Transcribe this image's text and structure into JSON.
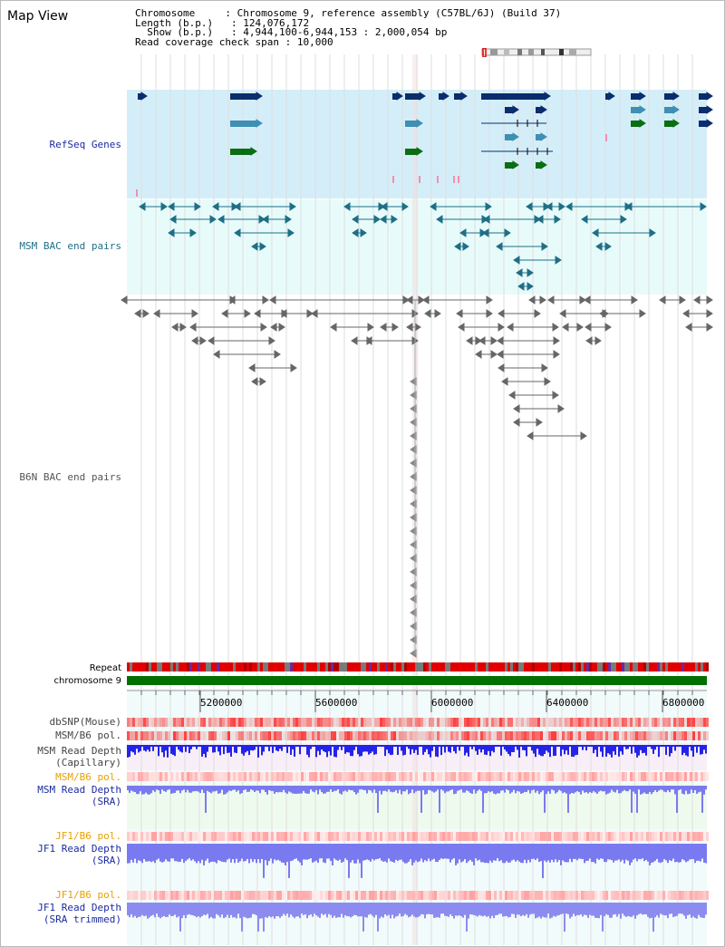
{
  "header": {
    "title": "Map View",
    "chromosome_key": "Chromosome",
    "chromosome_val": "Chromosome 9, reference assembly (C57BL/6J) (Build 37)",
    "length_key": "Length (b.p.)",
    "length_val": "124,076,172",
    "show_key": "Show (b.p.)",
    "show_val": "4,944,100-6,944,153 : 2,000,054 bp",
    "span_key": "Read coverage check span",
    "span_val": "10,000"
  },
  "tracks": {
    "refseq": "RefSeq Genes",
    "msm_bac": "MSM BAC end pairs",
    "b6n_bac": "B6N BAC end pairs",
    "repeat": "Repeat",
    "chromosome": "chromosome 9",
    "dbsnp": "dbSNP(Mouse)",
    "msm_b6_pol_1": "MSM/B6 pol.",
    "msm_depth_cap_1": "MSM Read Depth",
    "msm_depth_cap_2": "(Capillary)",
    "msm_b6_pol_2": "MSM/B6 pol.",
    "msm_depth_sra_1": "MSM Read Depth",
    "msm_depth_sra_2": "(SRA)",
    "jf1_pol_1": "JF1/B6 pol.",
    "jf1_depth_sra_1": "JF1 Read Depth",
    "jf1_depth_sra_2": "(SRA)",
    "jf1_pol_2": "JF1/B6 pol.",
    "jf1_depth_trim_1": "JF1 Read Depth",
    "jf1_depth_trim_2": "(SRA trimmed)"
  },
  "ruler": {
    "labels": [
      "5200000",
      "5600000",
      "6000000",
      "6400000",
      "6800000"
    ]
  },
  "colors": {
    "refseq_bg": "#d4eef9",
    "msm_bg": "#e8fbfb",
    "gene_dark": "#0a2d6e",
    "gene_mid": "#3e8fb3",
    "gene_green": "#0b6e12",
    "bac_teal": "#1e6f86",
    "bac_gray": "#666666",
    "repeat_red": "#e00000",
    "chrom_green": "#007000",
    "depth_blue": "#2424e8",
    "depth_light": "#7a7af0"
  }
}
